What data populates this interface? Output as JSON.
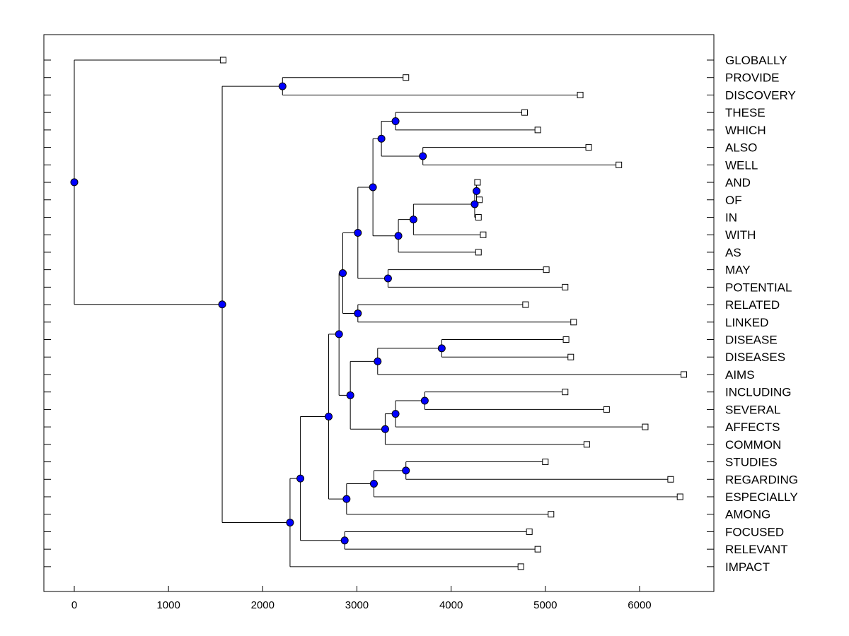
{
  "chart_data": {
    "type": "dendrogram",
    "orientation": "horizontal",
    "x_ticks": [
      "0",
      "1000",
      "2000",
      "3000",
      "4000",
      "5000",
      "6000"
    ],
    "x_tick_values": [
      0,
      1000,
      2000,
      3000,
      4000,
      5000,
      6000
    ],
    "xlim": [
      -320,
      6800
    ],
    "leaves": [
      {
        "name": "GLOBALLY",
        "x": 1580
      },
      {
        "name": "PROVIDE",
        "x": 3520
      },
      {
        "name": "DISCOVERY",
        "x": 5370
      },
      {
        "name": "THESE",
        "x": 4780
      },
      {
        "name": "WHICH",
        "x": 4920
      },
      {
        "name": "ALSO",
        "x": 5460
      },
      {
        "name": "WELL",
        "x": 5780
      },
      {
        "name": "AND",
        "x": 4280
      },
      {
        "name": "OF",
        "x": 4300
      },
      {
        "name": "IN",
        "x": 4290
      },
      {
        "name": "WITH",
        "x": 4340
      },
      {
        "name": "AS",
        "x": 4290
      },
      {
        "name": "MAY",
        "x": 5010
      },
      {
        "name": "POTENTIAL",
        "x": 5210
      },
      {
        "name": "RELATED",
        "x": 4790
      },
      {
        "name": "LINKED",
        "x": 5300
      },
      {
        "name": "DISEASE",
        "x": 5220
      },
      {
        "name": "DISEASES",
        "x": 5270
      },
      {
        "name": "AIMS",
        "x": 6470
      },
      {
        "name": "INCLUDING",
        "x": 5210
      },
      {
        "name": "SEVERAL",
        "x": 5650
      },
      {
        "name": "AFFECTS",
        "x": 6060
      },
      {
        "name": "COMMON",
        "x": 5440
      },
      {
        "name": "STUDIES",
        "x": 5000
      },
      {
        "name": "REGARDING",
        "x": 6330
      },
      {
        "name": "ESPECIALLY",
        "x": 6430
      },
      {
        "name": "AMONG",
        "x": 5060
      },
      {
        "name": "FOCUSED",
        "x": 4830
      },
      {
        "name": "RELEVANT",
        "x": 4920
      },
      {
        "name": "IMPACT",
        "x": 4740
      }
    ],
    "merges": [
      {
        "id": "n_and_of",
        "x": 4270,
        "children": [
          7,
          8
        ]
      },
      {
        "id": "n_andof_in",
        "x": 4250,
        "children": [
          "n_and_of",
          9
        ]
      },
      {
        "id": "n_with",
        "x": 3600,
        "children": [
          "n_andof_in",
          10
        ]
      },
      {
        "id": "n_as",
        "x": 3440,
        "children": [
          "n_with",
          11
        ]
      },
      {
        "id": "n_these_which",
        "x": 3410,
        "children": [
          3,
          4
        ]
      },
      {
        "id": "n_also_well",
        "x": 3700,
        "children": [
          5,
          6
        ]
      },
      {
        "id": "n_thesewhich_alsowell",
        "x": 3260,
        "children": [
          "n_these_which",
          "n_also_well"
        ]
      },
      {
        "id": "n_upper",
        "x": 3170,
        "children": [
          "n_thesewhich_alsowell",
          "n_as"
        ]
      },
      {
        "id": "n_may_pot",
        "x": 3330,
        "children": [
          12,
          13
        ]
      },
      {
        "id": "n_upper_may",
        "x": 3010,
        "children": [
          "n_upper",
          "n_may_pot"
        ]
      },
      {
        "id": "n_rel_linked",
        "x": 3010,
        "children": [
          14,
          15
        ]
      },
      {
        "id": "n_a",
        "x": 2850,
        "children": [
          "n_upper_may",
          "n_rel_linked"
        ]
      },
      {
        "id": "n_dis",
        "x": 3900,
        "children": [
          16,
          17
        ]
      },
      {
        "id": "n_dis_aims",
        "x": 3220,
        "children": [
          "n_dis",
          18
        ]
      },
      {
        "id": "n_incl_sev",
        "x": 3720,
        "children": [
          19,
          20
        ]
      },
      {
        "id": "n_is_aff",
        "x": 3410,
        "children": [
          "n_incl_sev",
          21
        ]
      },
      {
        "id": "n_isa_common",
        "x": 3300,
        "children": [
          "n_is_aff",
          22
        ]
      },
      {
        "id": "n_b",
        "x": 2930,
        "children": [
          "n_dis_aims",
          "n_isa_common"
        ]
      },
      {
        "id": "n_ab",
        "x": 2810,
        "children": [
          "n_a",
          "n_b"
        ]
      },
      {
        "id": "n_stud_reg",
        "x": 3520,
        "children": [
          23,
          24
        ]
      },
      {
        "id": "n_sr_esp",
        "x": 3180,
        "children": [
          "n_stud_reg",
          25
        ]
      },
      {
        "id": "n_sre_among",
        "x": 2890,
        "children": [
          "n_sr_esp",
          26
        ]
      },
      {
        "id": "n_c",
        "x": 2700,
        "children": [
          "n_ab",
          "n_sre_among"
        ]
      },
      {
        "id": "n_foc_rel",
        "x": 2870,
        "children": [
          27,
          28
        ]
      },
      {
        "id": "n_d",
        "x": 2400,
        "children": [
          "n_c",
          "n_foc_rel"
        ]
      },
      {
        "id": "n_e",
        "x": 2290,
        "children": [
          "n_d",
          29
        ]
      },
      {
        "id": "n_prov_disc",
        "x": 2210,
        "children": [
          1,
          2
        ]
      },
      {
        "id": "n_f",
        "x": 1570,
        "children": [
          "n_prov_disc",
          "n_e"
        ]
      },
      {
        "id": "root",
        "x": 0,
        "children": [
          0,
          "n_f"
        ]
      }
    ],
    "colors": {
      "node": "#0000ff",
      "line": "#000000",
      "leaf_fill": "#ffffff"
    }
  }
}
